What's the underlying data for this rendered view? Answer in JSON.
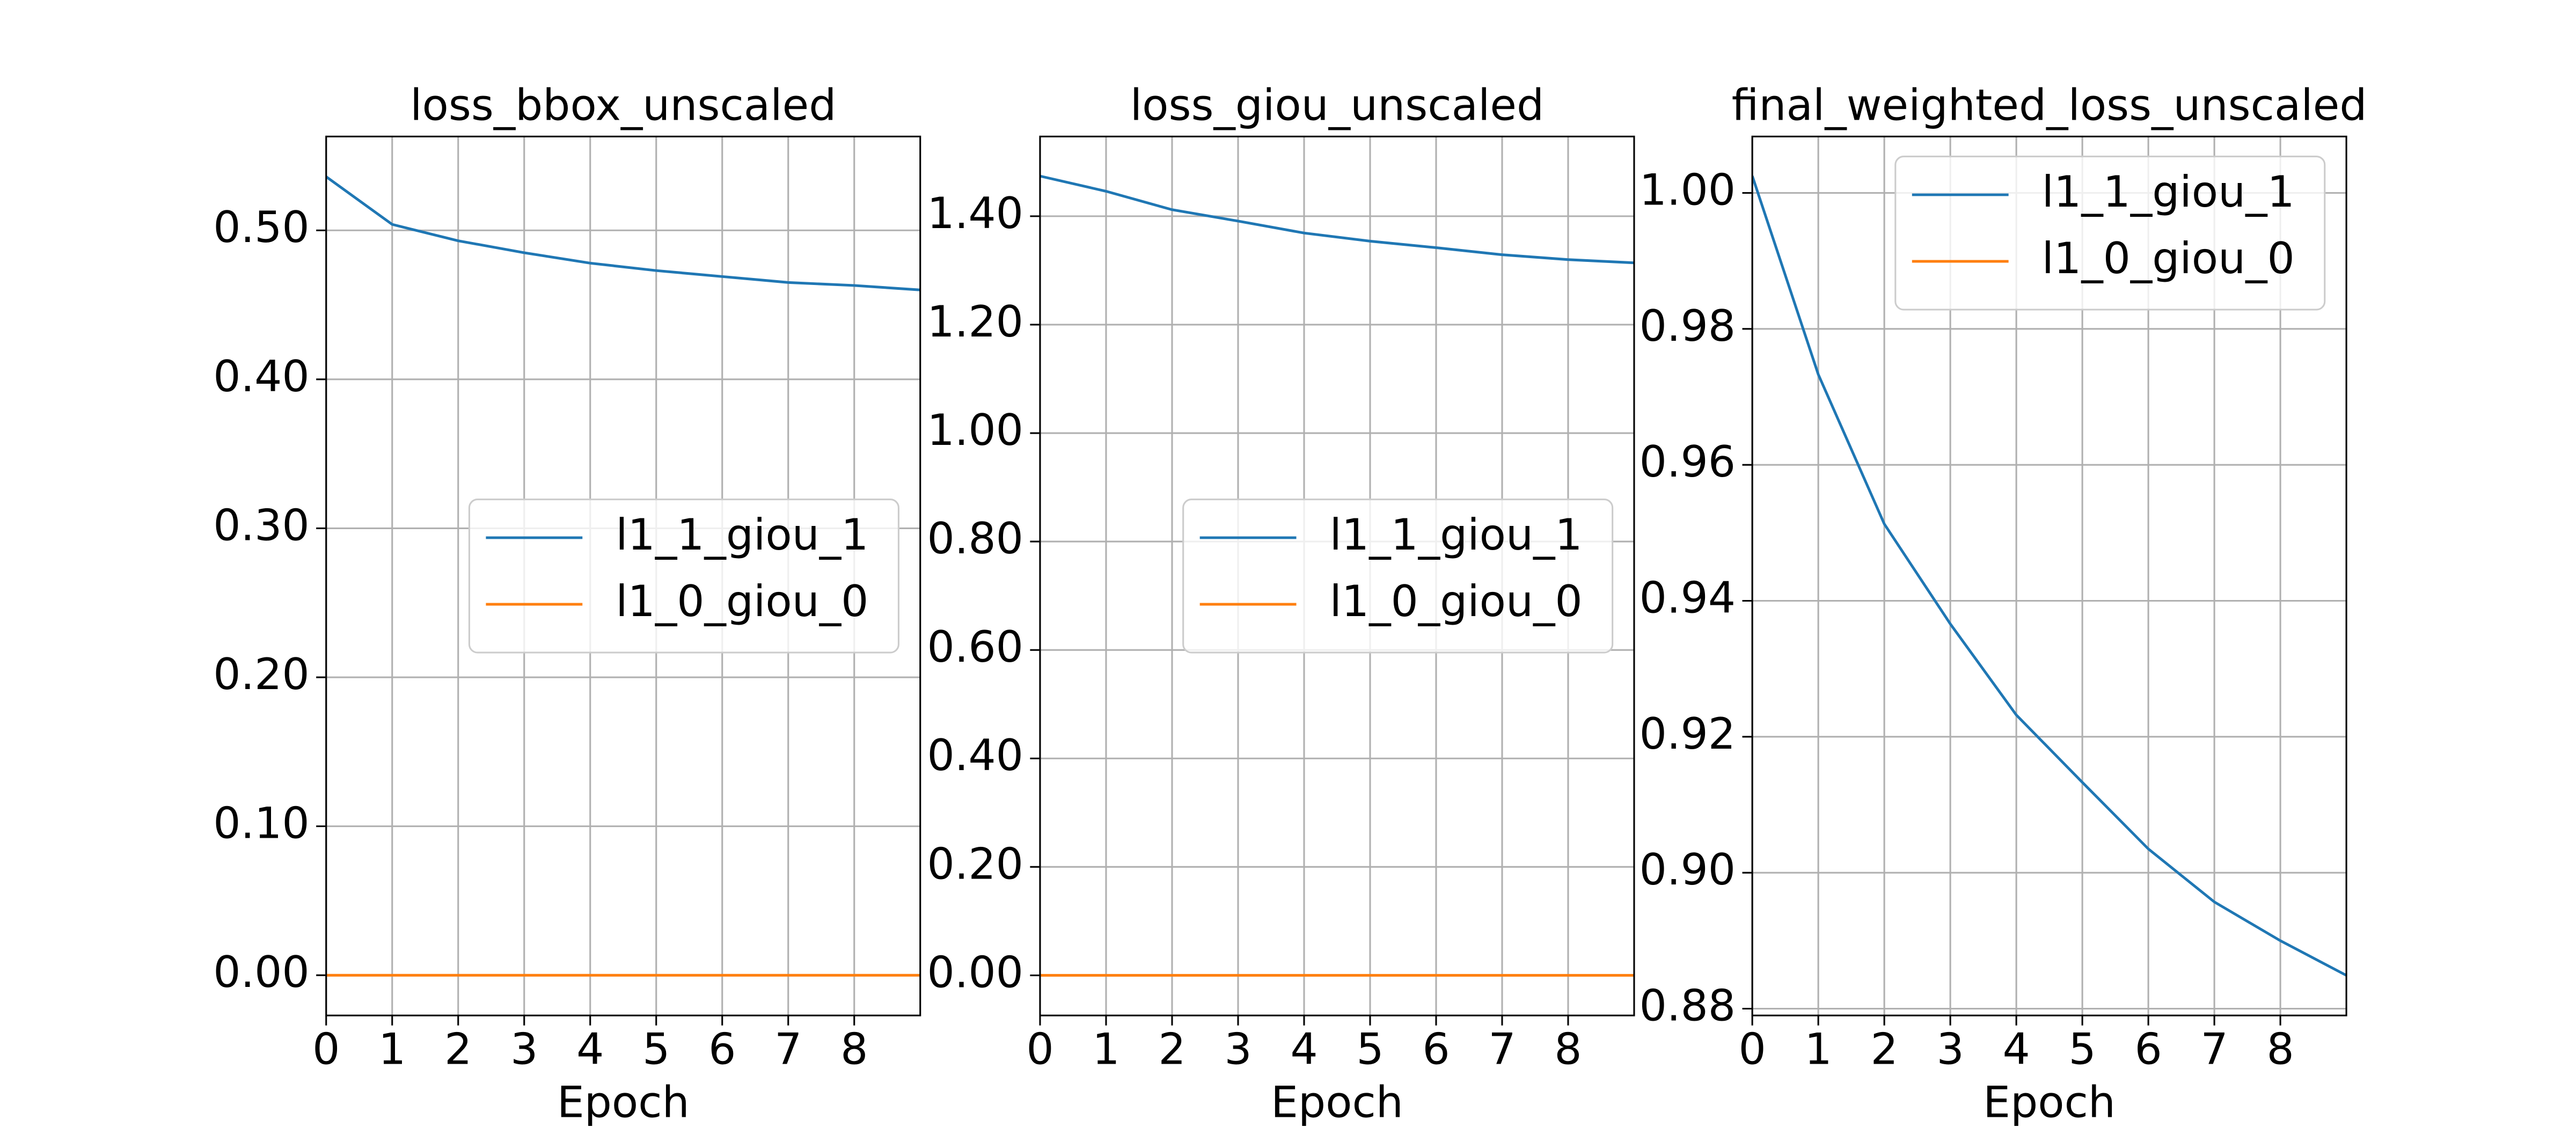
{
  "chart_data": [
    {
      "type": "line",
      "title": "loss_bbox_unscaled",
      "x_label": "Epoch",
      "x": [
        0,
        1,
        2,
        3,
        4,
        5,
        6,
        7,
        8,
        9
      ],
      "xlim": [
        0,
        9
      ],
      "xticks": [
        0,
        1,
        2,
        3,
        4,
        5,
        6,
        7,
        8
      ],
      "ylim": [
        -0.027,
        0.563
      ],
      "yticks": [
        {
          "value": 0,
          "label": "0.00"
        },
        {
          "value": 0.1,
          "label": "0.10"
        },
        {
          "value": 0.2,
          "label": "0.20"
        },
        {
          "value": 0.3,
          "label": "0.30"
        },
        {
          "value": 0.4,
          "label": "0.40"
        },
        {
          "value": 0.5,
          "label": "0.50"
        }
      ],
      "grid": true,
      "legend": "center right",
      "series": [
        {
          "name": "l1_1_giou_1",
          "color": "#1f77b4",
          "values": [
            0.536,
            0.504,
            0.493,
            0.485,
            0.478,
            0.473,
            0.469,
            0.465,
            0.463,
            0.46
          ]
        },
        {
          "name": "l1_0_giou_0",
          "color": "#ff7f0e",
          "values": [
            0,
            0,
            0,
            0,
            0,
            0,
            0,
            0,
            0,
            0
          ]
        }
      ]
    },
    {
      "type": "line",
      "title": "loss_giou_unscaled",
      "x_label": "Epoch",
      "x": [
        0,
        1,
        2,
        3,
        4,
        5,
        6,
        7,
        8,
        9
      ],
      "xlim": [
        0,
        9
      ],
      "xticks": [
        0,
        1,
        2,
        3,
        4,
        5,
        6,
        7,
        8
      ],
      "ylim": [
        -0.074,
        1.547
      ],
      "yticks": [
        {
          "value": 0,
          "label": "0.00"
        },
        {
          "value": 0.2,
          "label": "0.20"
        },
        {
          "value": 0.4,
          "label": "0.40"
        },
        {
          "value": 0.6,
          "label": "0.60"
        },
        {
          "value": 0.8,
          "label": "0.80"
        },
        {
          "value": 1.0,
          "label": "1.00"
        },
        {
          "value": 1.2,
          "label": "1.20"
        },
        {
          "value": 1.4,
          "label": "1.40"
        }
      ],
      "grid": true,
      "legend": "center right",
      "series": [
        {
          "name": "l1_1_giou_1",
          "color": "#1f77b4",
          "values": [
            1.474,
            1.446,
            1.412,
            1.391,
            1.369,
            1.354,
            1.342,
            1.329,
            1.32,
            1.314
          ]
        },
        {
          "name": "l1_0_giou_0",
          "color": "#ff7f0e",
          "values": [
            0,
            0,
            0,
            0,
            0,
            0,
            0,
            0,
            0,
            0
          ]
        }
      ]
    },
    {
      "type": "line",
      "title": "final_weighted_loss_unscaled",
      "x_label": "Epoch",
      "x": [
        0,
        1,
        2,
        3,
        4,
        5,
        6,
        7,
        8,
        9
      ],
      "xlim": [
        0,
        9
      ],
      "xticks": [
        0,
        1,
        2,
        3,
        4,
        5,
        6,
        7,
        8
      ],
      "ylim": [
        0.879,
        1.0083
      ],
      "yticks": [
        {
          "value": 0.88,
          "label": "0.88"
        },
        {
          "value": 0.9,
          "label": "0.90"
        },
        {
          "value": 0.92,
          "label": "0.92"
        },
        {
          "value": 0.94,
          "label": "0.94"
        },
        {
          "value": 0.96,
          "label": "0.96"
        },
        {
          "value": 0.98,
          "label": "0.98"
        },
        {
          "value": 1.0,
          "label": "1.00"
        }
      ],
      "grid": true,
      "legend": "upper right",
      "series": [
        {
          "name": "l1_1_giou_1",
          "color": "#1f77b4",
          "values": [
            1.0025,
            0.9733,
            0.9513,
            0.9366,
            0.9232,
            0.9133,
            0.9035,
            0.8957,
            0.89,
            0.8849
          ]
        },
        {
          "name": "l1_0_giou_0",
          "color": "#ff7f0e",
          "values": [
            0,
            0,
            0,
            0,
            0,
            0,
            0,
            0,
            0,
            0
          ]
        }
      ]
    }
  ]
}
